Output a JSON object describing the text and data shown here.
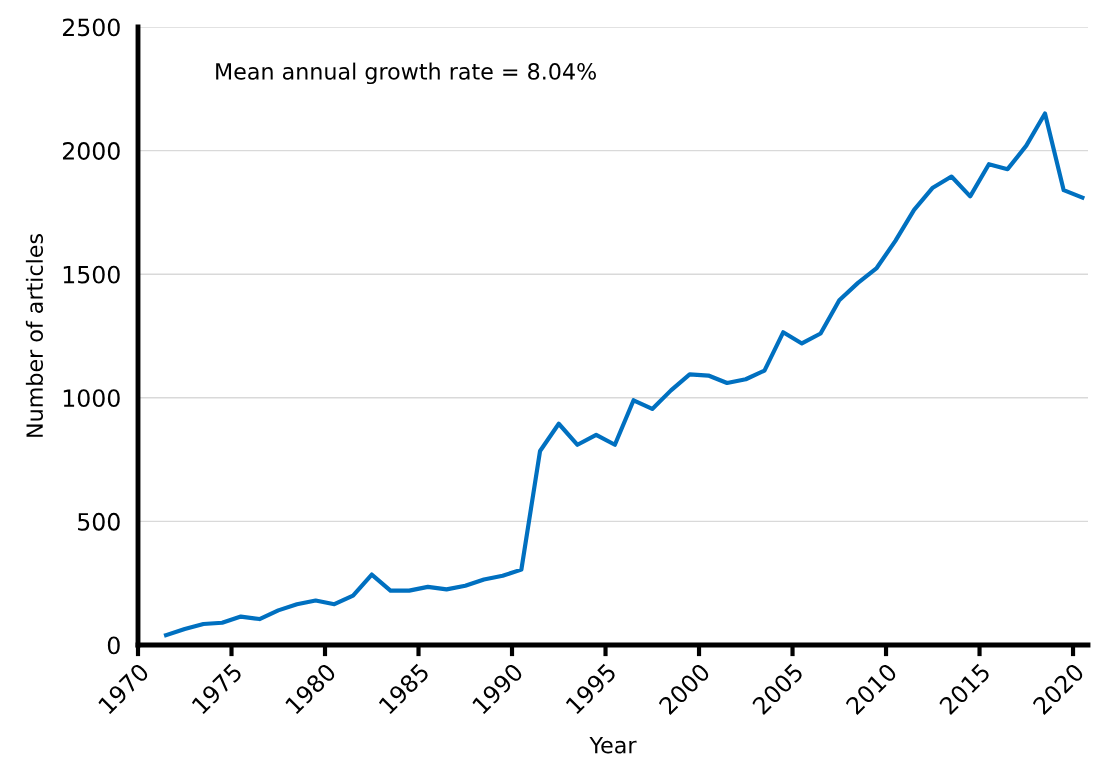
{
  "chart_data": {
    "type": "line",
    "xlabel": "Year",
    "ylabel": "Number of articles",
    "annotations": [
      "Mean annual growth rate = 8.04%"
    ],
    "x": [
      1971.5,
      1972.5,
      1973.5,
      1974.5,
      1975.5,
      1976.5,
      1977.5,
      1978.5,
      1979.5,
      1980.5,
      1981.5,
      1982.5,
      1983.5,
      1984.5,
      1985.5,
      1986.5,
      1987.5,
      1988.5,
      1989.5,
      1990.5,
      1991.5,
      1992.5,
      1993.5,
      1994.5,
      1995.5,
      1996.5,
      1997.5,
      1998.5,
      1999.5,
      2000.5,
      2001.5,
      2002.5,
      2003.5,
      2004.5,
      2005.5,
      2006.5,
      2007.5,
      2008.5,
      2009.5,
      2010.5,
      2011.5,
      2012.5,
      2013.5,
      2014.5,
      2015.5,
      2016.5,
      2017.5,
      2018.5,
      2019.5,
      2020.5
    ],
    "series": [
      {
        "color": "#0070c0",
        "values": [
          40,
          65,
          85,
          90,
          115,
          105,
          140,
          165,
          180,
          165,
          200,
          285,
          220,
          220,
          235,
          225,
          240,
          265,
          280,
          305,
          785,
          895,
          810,
          850,
          810,
          990,
          955,
          1030,
          1095,
          1090,
          1060,
          1075,
          1110,
          1265,
          1220,
          1260,
          1395,
          1465,
          1525,
          1635,
          1760,
          1850,
          1895,
          1815,
          1945,
          1925,
          2020,
          2150,
          1840,
          1810
        ]
      }
    ],
    "xlim": [
      1970,
      2020.8
    ],
    "xticks": [
      1970,
      1975,
      1980,
      1985,
      1990,
      1995,
      2000,
      2005,
      2010,
      2015,
      2020
    ],
    "ylim": [
      0,
      2500
    ],
    "yticks": [
      0,
      500,
      1000,
      1500,
      2000,
      2500
    ],
    "grid": "y",
    "legend": false,
    "marker": "none",
    "line_style": "solid"
  }
}
